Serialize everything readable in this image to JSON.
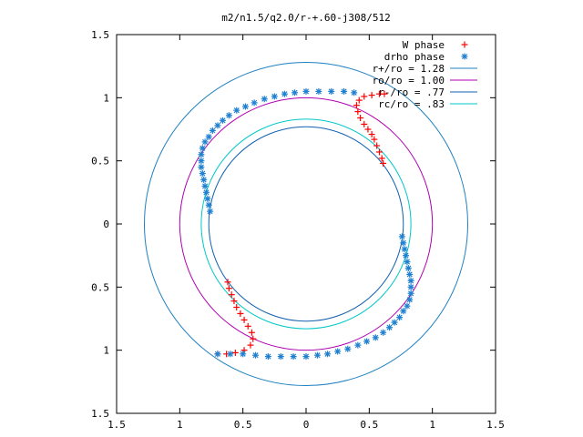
{
  "chart_data": {
    "type": "scatter",
    "title": "m2/n1.5/q2.0/r-+.60-j308/512",
    "xlabel": "",
    "ylabel": "",
    "xlim": [
      -1.5,
      1.5
    ],
    "ylim": [
      -1.5,
      1.5
    ],
    "x_ticks": [
      -1.5,
      -1,
      -0.5,
      0,
      0.5,
      1,
      1.5
    ],
    "y_ticks": [
      -1.5,
      -1,
      -0.5,
      0,
      0.5,
      1,
      1.5
    ],
    "x_tick_labels": [
      "1.5",
      "1",
      "0.5",
      "0",
      "0.5",
      "1",
      "1.5"
    ],
    "y_tick_labels": [
      "1.5",
      "1",
      "0.5",
      "0",
      "0.5",
      "1",
      "1.5"
    ],
    "grid": false,
    "legend_position": "top-right",
    "circles": [
      {
        "name": "r+/ro = 1.28",
        "radius": 1.28,
        "color": "#1f80c0"
      },
      {
        "name": "ro/ro = 1.00",
        "radius": 1.0,
        "color": "#b000b0"
      },
      {
        "name": "r-/ro =  .77",
        "radius": 0.77,
        "color": "#1060b0"
      },
      {
        "name": "rc/ro =  .83",
        "radius": 0.83,
        "color": "#00c8c8"
      }
    ],
    "series": [
      {
        "name": "W phase",
        "marker": "plus",
        "color": "#ff0000",
        "points": [
          [
            0.61,
            0.48
          ],
          [
            0.6,
            0.52
          ],
          [
            0.58,
            0.57
          ],
          [
            0.56,
            0.62
          ],
          [
            0.54,
            0.67
          ],
          [
            0.52,
            0.71
          ],
          [
            0.49,
            0.75
          ],
          [
            0.46,
            0.79
          ],
          [
            0.43,
            0.84
          ],
          [
            0.41,
            0.89
          ],
          [
            0.4,
            0.94
          ],
          [
            0.42,
            0.98
          ],
          [
            0.46,
            1.01
          ],
          [
            0.52,
            1.02
          ],
          [
            0.58,
            1.03
          ],
          [
            0.62,
            1.03
          ],
          [
            -0.62,
            -0.46
          ],
          [
            -0.61,
            -0.51
          ],
          [
            -0.59,
            -0.56
          ],
          [
            -0.57,
            -0.61
          ],
          [
            -0.55,
            -0.66
          ],
          [
            -0.52,
            -0.71
          ],
          [
            -0.49,
            -0.76
          ],
          [
            -0.46,
            -0.81
          ],
          [
            -0.43,
            -0.86
          ],
          [
            -0.42,
            -0.91
          ],
          [
            -0.44,
            -0.96
          ],
          [
            -0.49,
            -1
          ],
          [
            -0.56,
            -1.02
          ],
          [
            -0.63,
            -1.03
          ],
          [
            -0.7,
            -1.03
          ]
        ]
      },
      {
        "name": "drho phase",
        "marker": "asterisk",
        "color": "#1f80d0",
        "points": [
          [
            -0.76,
            0.1
          ],
          [
            -0.77,
            0.15
          ],
          [
            -0.78,
            0.2
          ],
          [
            -0.79,
            0.25
          ],
          [
            -0.8,
            0.3
          ],
          [
            -0.81,
            0.35
          ],
          [
            -0.82,
            0.4
          ],
          [
            -0.83,
            0.45
          ],
          [
            -0.83,
            0.5
          ],
          [
            -0.83,
            0.55
          ],
          [
            -0.82,
            0.6
          ],
          [
            -0.8,
            0.65
          ],
          [
            -0.77,
            0.69
          ],
          [
            -0.74,
            0.74
          ],
          [
            -0.7,
            0.78
          ],
          [
            -0.66,
            0.82
          ],
          [
            -0.61,
            0.86
          ],
          [
            -0.55,
            0.9
          ],
          [
            -0.48,
            0.93
          ],
          [
            -0.41,
            0.96
          ],
          [
            -0.33,
            0.99
          ],
          [
            -0.25,
            1.01
          ],
          [
            -0.17,
            1.03
          ],
          [
            -0.09,
            1.04
          ],
          [
            0,
            1.05
          ],
          [
            0.1,
            1.05
          ],
          [
            0.2,
            1.05
          ],
          [
            0.3,
            1.05
          ],
          [
            0.38,
            1.04
          ],
          [
            0.76,
            -0.1
          ],
          [
            0.77,
            -0.15
          ],
          [
            0.78,
            -0.2
          ],
          [
            0.79,
            -0.25
          ],
          [
            0.8,
            -0.3
          ],
          [
            0.81,
            -0.35
          ],
          [
            0.82,
            -0.4
          ],
          [
            0.83,
            -0.45
          ],
          [
            0.83,
            -0.5
          ],
          [
            0.83,
            -0.55
          ],
          [
            0.82,
            -0.6
          ],
          [
            0.8,
            -0.65
          ],
          [
            0.77,
            -0.69
          ],
          [
            0.74,
            -0.74
          ],
          [
            0.7,
            -0.78
          ],
          [
            0.66,
            -0.82
          ],
          [
            0.61,
            -0.86
          ],
          [
            0.55,
            -0.9
          ],
          [
            0.48,
            -0.93
          ],
          [
            0.41,
            -0.96
          ],
          [
            0.33,
            -0.99
          ],
          [
            0.25,
            -1.01
          ],
          [
            0.17,
            -1.03
          ],
          [
            0.09,
            -1.04
          ],
          [
            0,
            -1.05
          ],
          [
            -0.1,
            -1.05
          ],
          [
            -0.2,
            -1.05
          ],
          [
            -0.3,
            -1.05
          ],
          [
            -0.4,
            -1.04
          ],
          [
            -0.5,
            -1.03
          ],
          [
            -0.6,
            -1.03
          ],
          [
            -0.7,
            -1.03
          ]
        ]
      }
    ]
  }
}
